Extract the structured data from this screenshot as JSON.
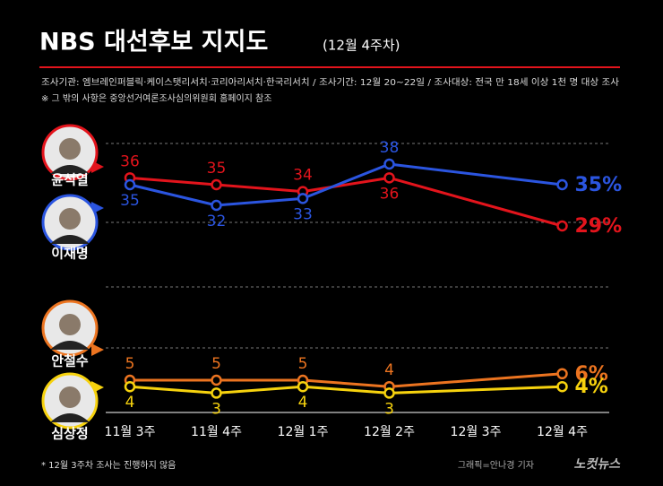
{
  "chart_data": [
    {
      "type": "line",
      "title": "NBS 대선후보 지지도",
      "subtitle": "(12월 4주차)",
      "ylim": [
        26,
        41
      ],
      "series": [
        {
          "name": "윤석열",
          "color": "#e3141c",
          "values": [
            36,
            35,
            34,
            36,
            null,
            29
          ],
          "value_labels": [
            "36",
            "35",
            "34",
            "36",
            null,
            "29%"
          ]
        },
        {
          "name": "이재명",
          "color": "#2b55e0",
          "values": [
            35,
            32,
            33,
            38,
            null,
            35
          ],
          "value_labels": [
            "35",
            "32",
            "33",
            "38",
            null,
            "35%"
          ]
        }
      ]
    },
    {
      "type": "line",
      "categories": [
        "11월 3주",
        "11월 4주",
        "12월 1주",
        "12월 2주",
        "12월 3주",
        "12월 4주"
      ],
      "ylim": [
        0,
        10
      ],
      "series": [
        {
          "name": "안철수",
          "color": "#ec7420",
          "values": [
            5,
            5,
            5,
            4,
            null,
            6
          ],
          "value_labels": [
            "5",
            "5",
            "5",
            "4",
            null,
            "6%"
          ]
        },
        {
          "name": "심상정",
          "color": "#f6d20e",
          "values": [
            4,
            3,
            4,
            3,
            null,
            4
          ],
          "value_labels": [
            "4",
            "3",
            "4",
            "3",
            null,
            "4%"
          ]
        }
      ]
    }
  ],
  "source": "조사기관: 엠브레인퍼블릭·케이스탯리서치·코리아리서치·한국리서치 / 조사기간: 12월 20~22일 / 조사대상: 전국 만 18세 이상 1천 명 대상 조사",
  "note": "※ 그 밖의 사항은 중앙선거여론조사심의위원회 홈페이지 참조",
  "footnote": "* 12월 3주차 조사는 진행하지 않음",
  "credit": "그래픽=안나경 기자",
  "logo": "노컷뉴스"
}
